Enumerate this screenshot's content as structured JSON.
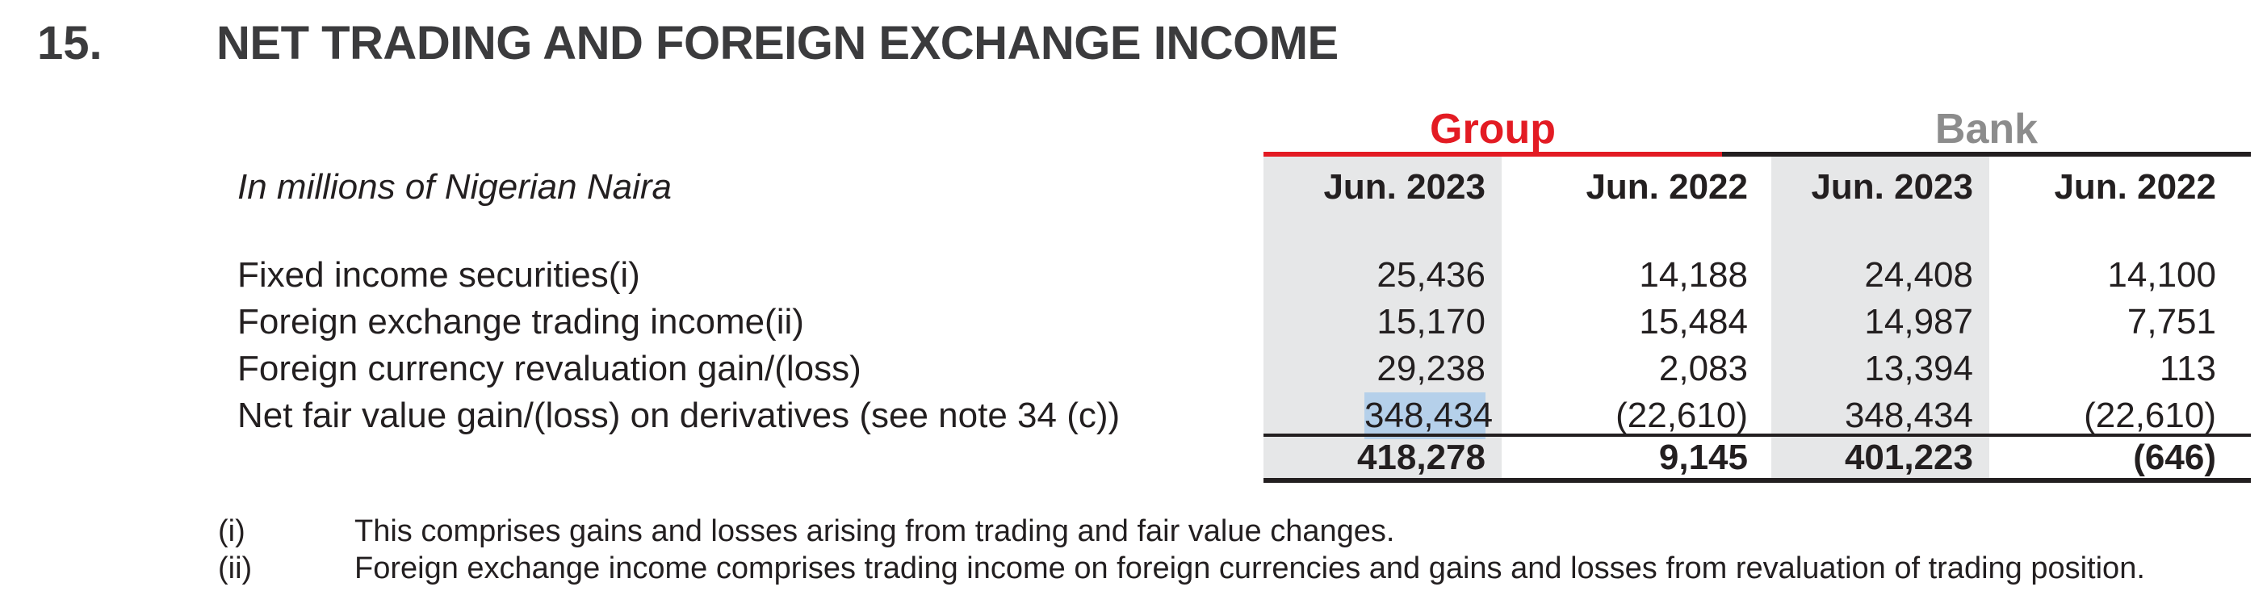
{
  "section": {
    "number": "15.",
    "title": "NET TRADING AND FOREIGN EXCHANGE INCOME"
  },
  "table": {
    "units_label": "In millions of Nigerian Naira",
    "groups": [
      "Group",
      "Bank"
    ],
    "columns": [
      "Jun. 2023",
      "Jun. 2022",
      "Jun. 2023",
      "Jun. 2022"
    ],
    "rows": [
      {
        "label": "Fixed income securities(i)",
        "values": [
          "25,436",
          "14,188",
          "24,408",
          "14,100"
        ]
      },
      {
        "label": "Foreign exchange trading income(ii)",
        "values": [
          "15,170",
          "15,484",
          "14,987",
          "7,751"
        ]
      },
      {
        "label": "Foreign currency revaluation gain/(loss)",
        "values": [
          "29,238",
          "2,083",
          "13,394",
          "113"
        ]
      },
      {
        "label": "Net fair value gain/(loss) on derivatives (see note 34 (c))",
        "values": [
          "348,434",
          "(22,610)",
          "348,434",
          "(22,610)"
        ]
      }
    ],
    "totals": [
      "418,278",
      "9,145",
      "401,223",
      "(646)"
    ]
  },
  "footnotes": [
    {
      "mark": "(i)",
      "text": "This comprises gains and losses arising from trading and fair value changes."
    },
    {
      "mark": "(ii)",
      "text": "Foreign exchange income comprises trading income on foreign currencies and gains and losses from revaluation of trading position."
    }
  ],
  "colors": {
    "group": "#e31b23",
    "bank": "#8c8c8c",
    "shade": "#e6e7e8",
    "selection": "#b5d0ea"
  }
}
